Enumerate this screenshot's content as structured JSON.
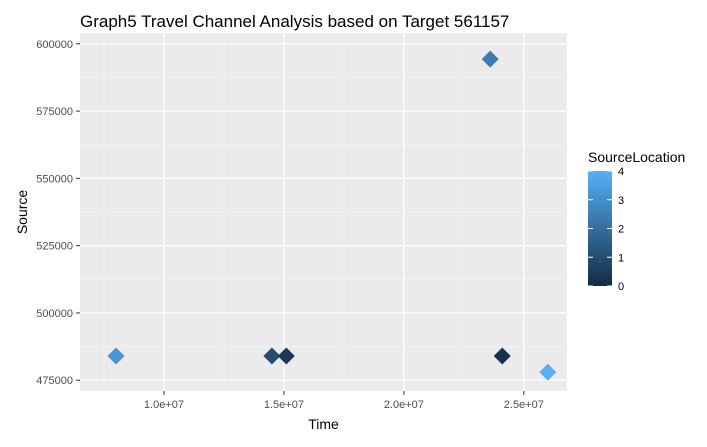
{
  "chart_data": {
    "type": "scatter",
    "title": "Graph5 Travel Channel Analysis based on Target 561157",
    "xlabel": "Time",
    "ylabel": "Source",
    "xlim": [
      6500000,
      26800000
    ],
    "ylim": [
      471000,
      604000
    ],
    "x_ticks": [
      10000000,
      15000000,
      20000000,
      25000000
    ],
    "x_tick_labels": [
      "1.0e+07",
      "1.5e+07",
      "2.0e+07",
      "2.5e+07"
    ],
    "y_ticks": [
      475000,
      500000,
      525000,
      550000,
      575000,
      600000
    ],
    "y_tick_labels": [
      "475000",
      "500000",
      "525000",
      "550000",
      "575000",
      "600000"
    ],
    "grid": true,
    "marker": "diamond",
    "color_scale": {
      "name": "SourceLocation",
      "min": 0,
      "max": 4,
      "low_color": "#132b43",
      "high_color": "#56b1f7",
      "ticks": [
        0,
        1,
        2,
        3,
        4
      ],
      "tick_labels": [
        "0",
        "1",
        "2",
        "3",
        "4"
      ],
      "placement": "right"
    },
    "points": [
      {
        "x": 8000000,
        "y": 484000,
        "color_value": 3.2
      },
      {
        "x": 14500000,
        "y": 484000,
        "color_value": 1.0
      },
      {
        "x": 15100000,
        "y": 484000,
        "color_value": 0.4
      },
      {
        "x": 23600000,
        "y": 594300,
        "color_value": 2.4
      },
      {
        "x": 24100000,
        "y": 484000,
        "color_value": 0.2
      },
      {
        "x": 26000000,
        "y": 478000,
        "color_value": 4.0
      }
    ]
  }
}
